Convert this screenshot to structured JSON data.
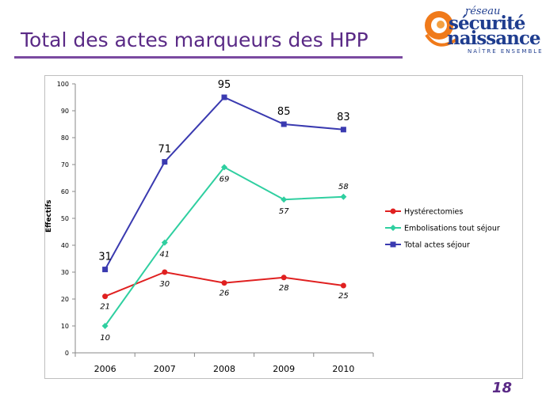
{
  "slide": {
    "title": "Total des actes marqueurs des HPP",
    "page_number": "18"
  },
  "logo": {
    "line1": "réseau",
    "line2": "sécurité",
    "line3": "naissance",
    "tagline": "NAÎTRE ENSEMBLE"
  },
  "colors": {
    "title": "#5a2a86",
    "hysterectomies": "#e02020",
    "embolisations": "#2fcfa0",
    "total": "#3a3ab0"
  },
  "chart_data": {
    "type": "line",
    "title": "",
    "xlabel": "",
    "ylabel": "Effectifs",
    "categories": [
      "2006",
      "2007",
      "2008",
      "2009",
      "2010"
    ],
    "ylim": [
      0,
      100
    ],
    "yticks": [
      0,
      10,
      20,
      30,
      40,
      50,
      60,
      70,
      80,
      90,
      100
    ],
    "legend_position": "right",
    "series": [
      {
        "name": "Hystérectomies",
        "values": [
          21,
          30,
          26,
          28,
          25
        ],
        "labels": [
          "21",
          "30",
          "26",
          "28",
          "25"
        ],
        "color": "#e02020",
        "marker": "circle"
      },
      {
        "name": "Embolisations tout séjour",
        "values": [
          10,
          41,
          69,
          57,
          58
        ],
        "labels": [
          "10",
          "41",
          "69",
          "57",
          "58"
        ],
        "color": "#2fcfa0",
        "marker": "diamond"
      },
      {
        "name": "Total actes séjour",
        "values": [
          31,
          71,
          95,
          85,
          83
        ],
        "labels": [
          "31",
          "71",
          "95",
          "85",
          "83"
        ],
        "color": "#3a3ab0",
        "marker": "square"
      }
    ]
  }
}
